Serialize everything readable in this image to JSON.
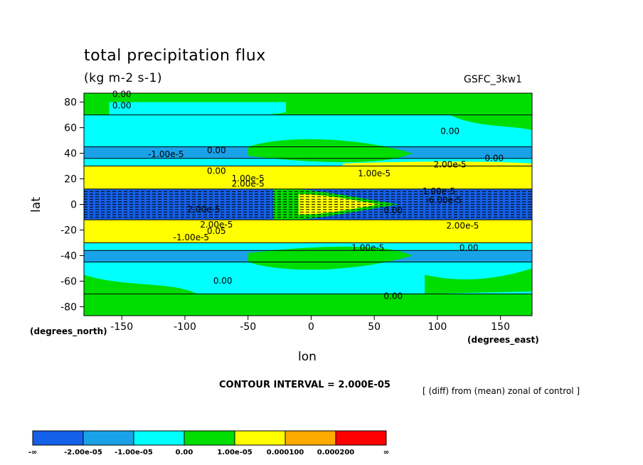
{
  "header": {
    "title": "total precipitation flux",
    "units": "(kg m-2 s-1)",
    "model": "GSFC_3kw1"
  },
  "axes": {
    "ylabel": "lat",
    "xlabel": "lon",
    "y_unit": "(degrees_north)",
    "x_unit": "(degrees_east)"
  },
  "footer": {
    "contour_interval": "CONTOUR INTERVAL = 2.000E-05",
    "description": "[ (diff) from (mean) zonal of control ]"
  },
  "colors": {
    "lt_neg2": "#1560e8",
    "neg2_to_neg1": "#1aa2e8",
    "neg1_to_0": "#00ffff",
    "zero_to_1": "#00dd00",
    "one_to_2": "#ffff00",
    "mid": "#ffaa00",
    "high": "#ff0000",
    "contour": "#000000"
  },
  "chart_data": {
    "type": "contour",
    "xlim": [
      -180,
      175
    ],
    "ylim": [
      -87,
      87
    ],
    "x_ticks": [
      -150,
      -100,
      -50,
      0,
      50,
      100,
      150
    ],
    "x_tick_labels": [
      "-150",
      "-100",
      "-50",
      "0",
      "50",
      "100",
      "150"
    ],
    "y_ticks": [
      80,
      60,
      40,
      20,
      0,
      -20,
      -40,
      -60,
      -80
    ],
    "y_tick_labels": [
      "80",
      "60",
      "40",
      "20",
      "0",
      "-20",
      "-40",
      "-60",
      "-80"
    ],
    "zonal_bands": [
      {
        "lat_min": 70,
        "lat_max": 87,
        "class": "zero_to_1"
      },
      {
        "lat_min": 45,
        "lat_max": 70,
        "class": "neg1_to_0"
      },
      {
        "lat_min": 36,
        "lat_max": 45,
        "class": "neg2_to_neg1"
      },
      {
        "lat_min": 30,
        "lat_max": 36,
        "class": "neg1_to_0"
      },
      {
        "lat_min": 12,
        "lat_max": 30,
        "class": "one_to_2"
      },
      {
        "lat_min": -12,
        "lat_max": 12,
        "class": "lt_neg2"
      },
      {
        "lat_min": -30,
        "lat_max": -12,
        "class": "one_to_2"
      },
      {
        "lat_min": -36,
        "lat_max": -30,
        "class": "neg1_to_0"
      },
      {
        "lat_min": -45,
        "lat_max": -36,
        "class": "neg2_to_neg1"
      },
      {
        "lat_min": -70,
        "lat_max": -45,
        "class": "neg1_to_0"
      },
      {
        "lat_min": -87,
        "lat_max": -70,
        "class": "zero_to_1"
      }
    ],
    "contour_labels": [
      {
        "lon": -150,
        "lat": 84,
        "text": "0.00"
      },
      {
        "lon": -150,
        "lat": 75,
        "text": "0.00"
      },
      {
        "lon": -115,
        "lat": 37,
        "text": "-1.00e-5"
      },
      {
        "lon": -75,
        "lat": 40,
        "text": "0.00"
      },
      {
        "lon": -75,
        "lat": 24,
        "text": "0.00"
      },
      {
        "lon": -50,
        "lat": 14,
        "text": "2.00e-5"
      },
      {
        "lon": -50,
        "lat": 18,
        "text": "1.00e-5"
      },
      {
        "lon": -85,
        "lat": -6,
        "text": "2.00e-5"
      },
      {
        "lon": -75,
        "lat": -18,
        "text": "2.00e-5"
      },
      {
        "lon": -75,
        "lat": -23,
        "text": "0.05"
      },
      {
        "lon": -95,
        "lat": -28,
        "text": "-1.00e-5"
      },
      {
        "lon": -70,
        "lat": -62,
        "text": "0.00"
      },
      {
        "lon": 50,
        "lat": 22,
        "text": "1.00e-5"
      },
      {
        "lon": 110,
        "lat": 29,
        "text": "2.00e-5"
      },
      {
        "lon": 145,
        "lat": 34,
        "text": "0.00"
      },
      {
        "lon": 110,
        "lat": 55,
        "text": "0.00"
      },
      {
        "lon": 100,
        "lat": 8,
        "text": "-1.00e-5"
      },
      {
        "lon": 105,
        "lat": 1,
        "text": "-6.00e-5"
      },
      {
        "lon": 65,
        "lat": -7,
        "text": "0.00"
      },
      {
        "lon": 120,
        "lat": -19,
        "text": "2.00e-5"
      },
      {
        "lon": 45,
        "lat": -36,
        "text": "1.00e-5"
      },
      {
        "lon": 125,
        "lat": -36,
        "text": "0.00"
      },
      {
        "lon": 65,
        "lat": -74,
        "text": "0.00"
      }
    ],
    "legend": {
      "classes": [
        "lt_neg2",
        "neg2_to_neg1",
        "neg1_to_0",
        "zero_to_1",
        "one_to_2",
        "mid",
        "high"
      ],
      "labels": [
        "-∞",
        "-2.00e-05",
        "-1.00e-05",
        "0.00",
        "1.00e-05",
        "0.000100",
        "0.000200",
        "∞"
      ]
    }
  }
}
